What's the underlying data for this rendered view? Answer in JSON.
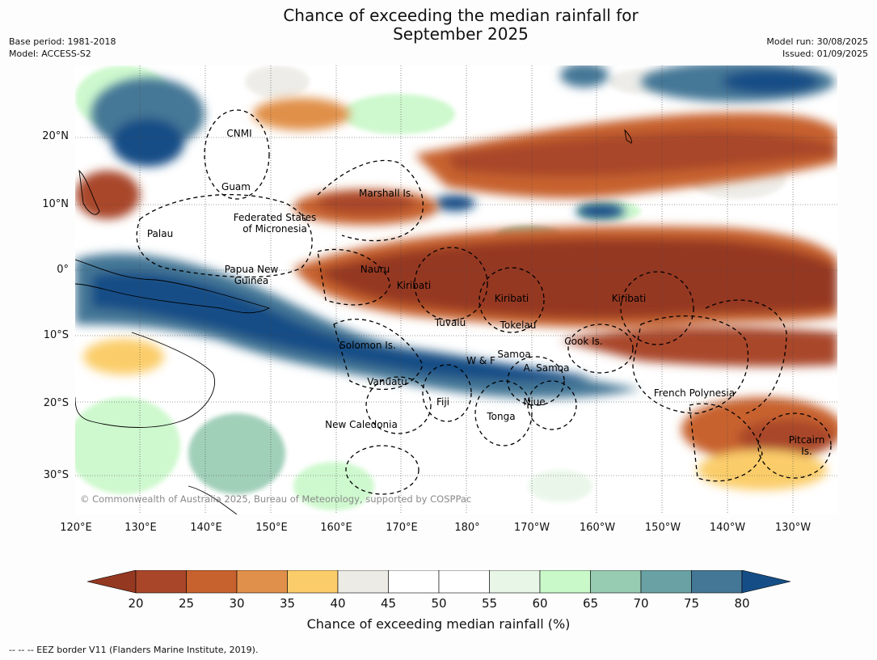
{
  "title_line1": "Chance of exceeding the median rainfall for",
  "title_line2": "September 2025",
  "meta_left": [
    "Base period: 1981-2018",
    "Model: ACCESS-S2"
  ],
  "meta_right": [
    "Model run: 30/08/2025",
    "Issued: 01/09/2025"
  ],
  "lat_labels": [
    "20°N",
    "10°N",
    "0°",
    "10°S",
    "20°S",
    "30°S"
  ],
  "lon_labels": [
    "120°E",
    "130°E",
    "140°E",
    "150°E",
    "160°E",
    "170°E",
    "180°",
    "170°W",
    "160°W",
    "150°W",
    "140°W",
    "130°W"
  ],
  "places": {
    "cnmi": "CNMI",
    "guam": "Guam",
    "marshall": "Marshall Is.",
    "fsm1": "Federated States",
    "fsm2": "of Micronesia",
    "palau": "Palau",
    "png1": "Papua New",
    "png2": "Guinea",
    "nauru": "Nauru",
    "kiribati1": "Kiribati",
    "kiribati2": "Kiribati",
    "kiribati3": "Kiribati",
    "tuvalu": "Tuvalu",
    "tokelau": "Tokelau",
    "solomon": "Solomon Is.",
    "wf": "W & F",
    "samoa": "Samoa",
    "asamoa": "A. Samoa",
    "cook": "Cook Is.",
    "vanuatu": "Vanuatu",
    "fiji": "Fiji",
    "niue": "Niue",
    "tonga": "Tonga",
    "frenchpoly": "French Polynesia",
    "newcal": "New Caledonia",
    "pitcairn1": "Pitcairn",
    "pitcairn2": "Is."
  },
  "copyright": "© Commonwealth of Australia 2025, Bureau of Meteorology, supported by COSPPac",
  "colorbar": {
    "ticks": [
      "20",
      "25",
      "30",
      "35",
      "40",
      "45",
      "50",
      "55",
      "60",
      "65",
      "70",
      "75",
      "80"
    ],
    "colors": [
      "#a9462a",
      "#c7622e",
      "#e0904a",
      "#fbcd6a",
      "#ecebe6",
      "#ffffff",
      "#ffffff",
      "#e8f6e8",
      "#c9f8c9",
      "#97cbb2",
      "#6aa1a4",
      "#447796"
    ],
    "below_color": "#953821",
    "above_color": "#154e86",
    "label": "Chance of exceeding median rainfall (%)"
  },
  "footnote": "--  --  -- EEZ border V11 (Flanders Marine Institute, 2019)."
}
